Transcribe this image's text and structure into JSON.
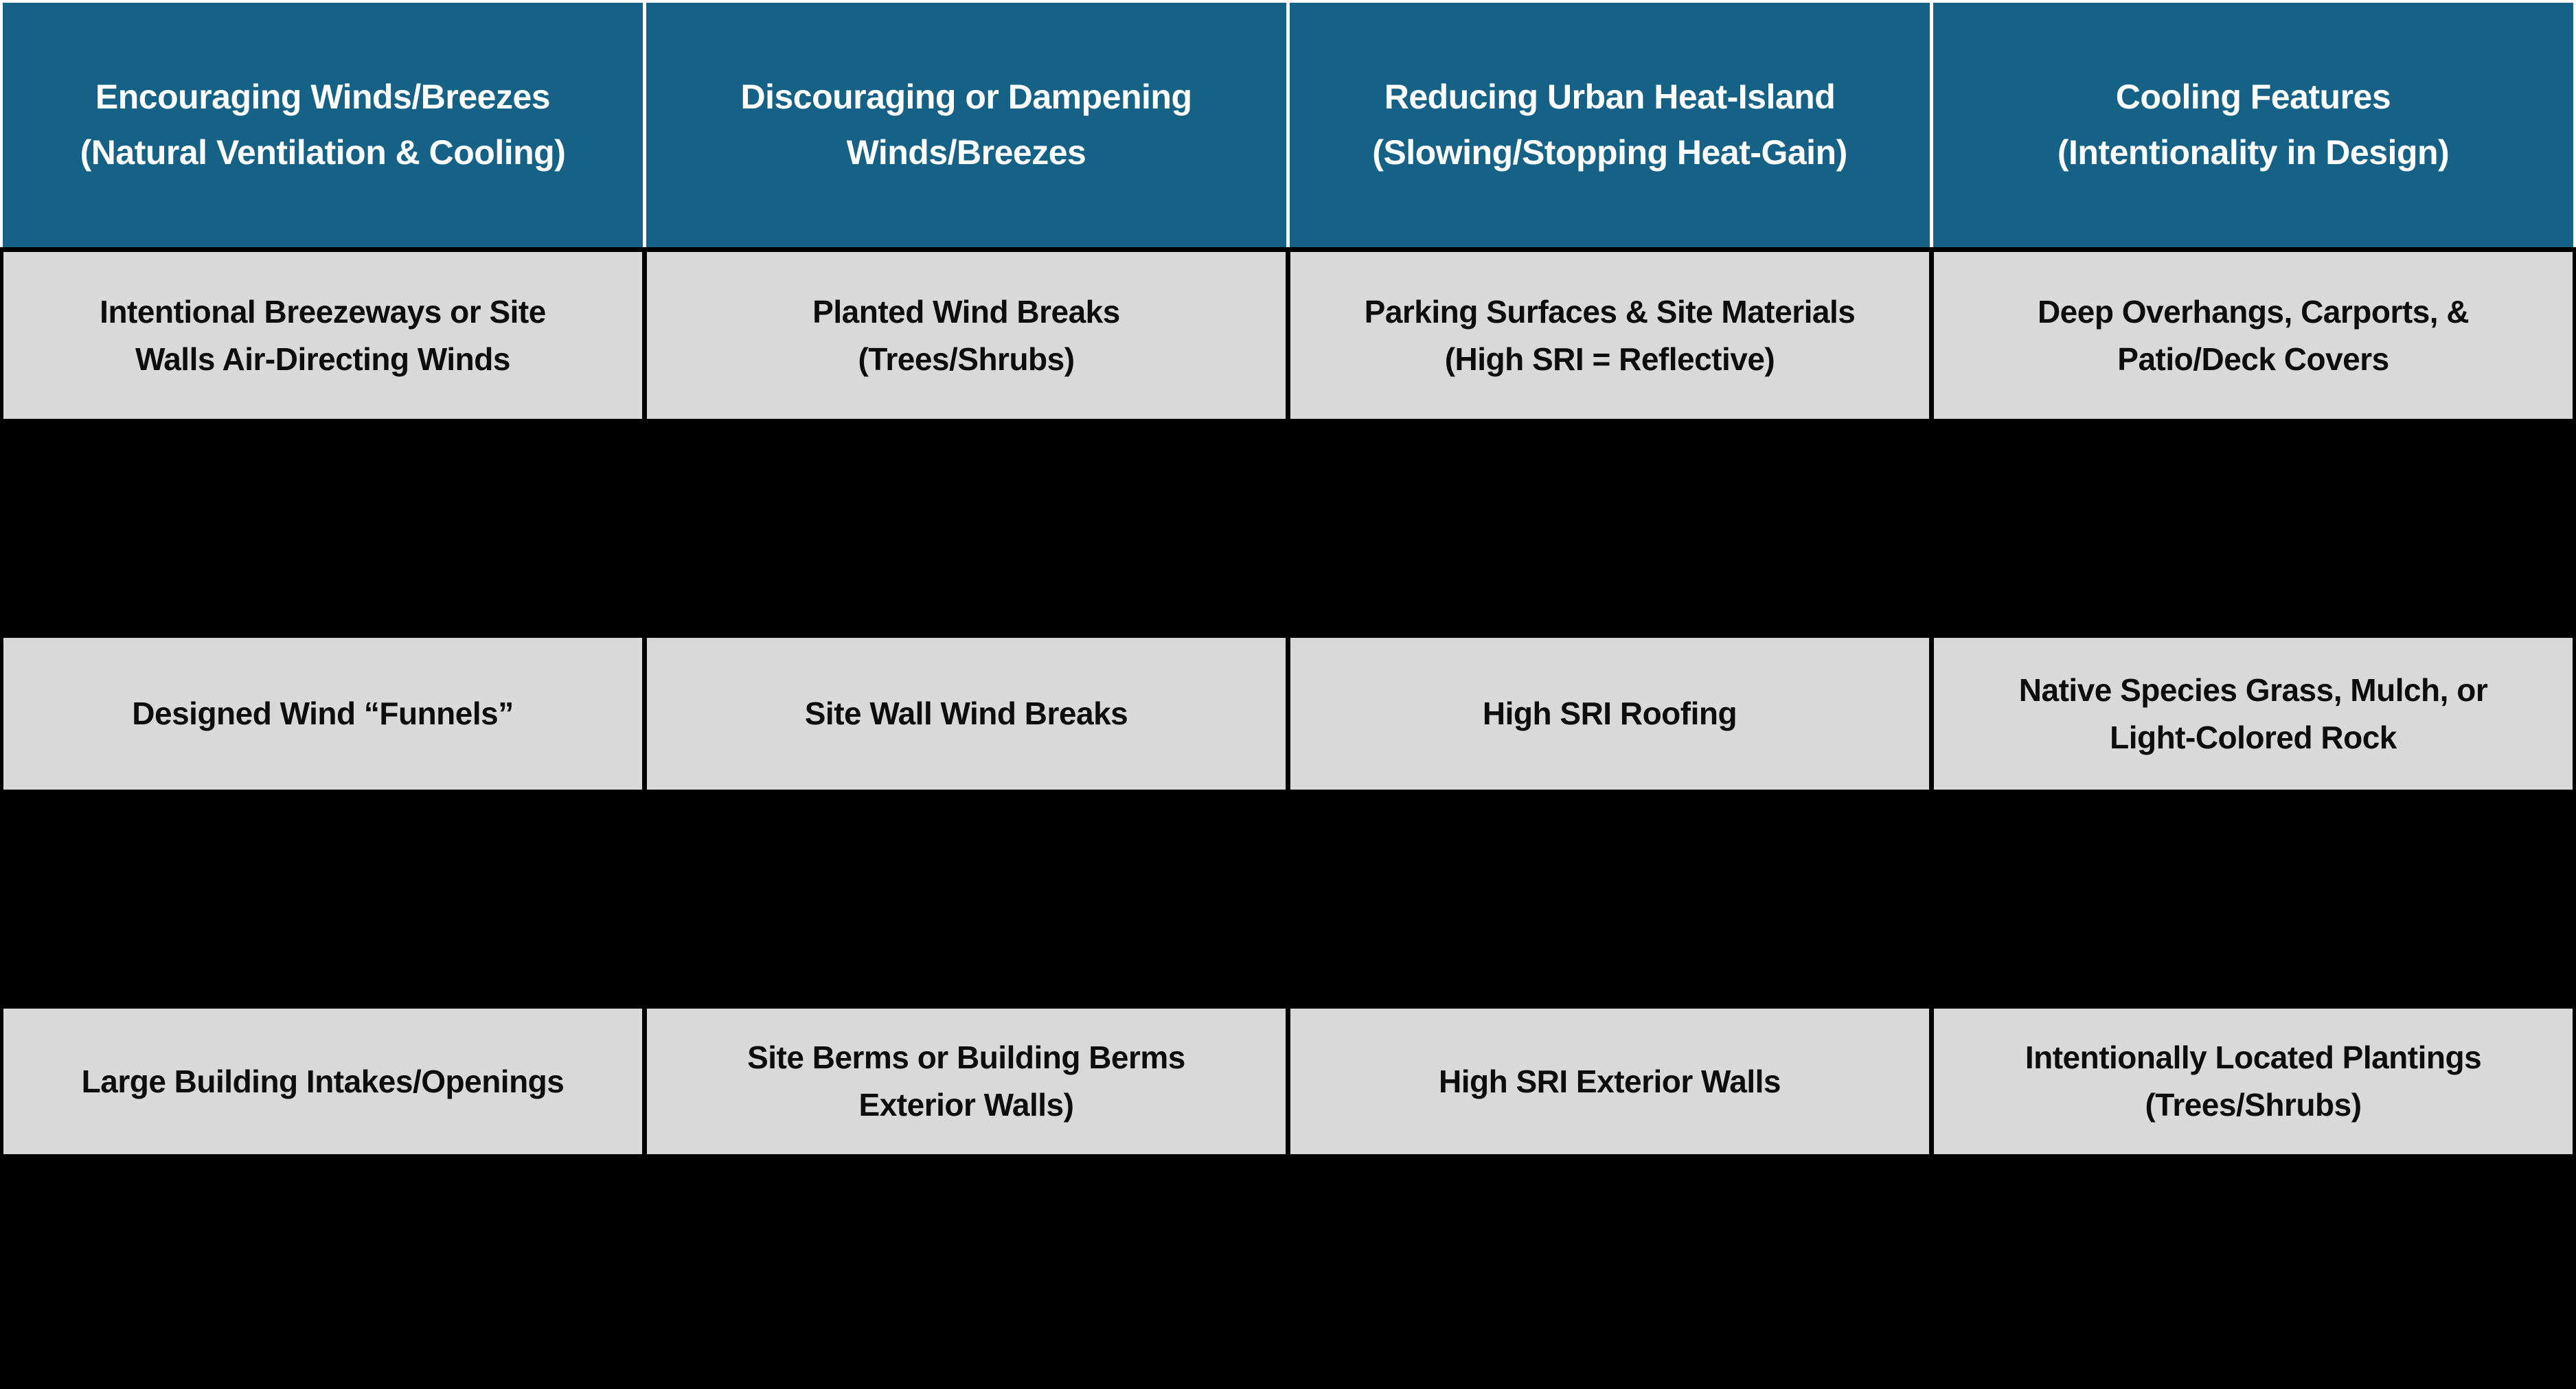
{
  "theme": {
    "header_bg": "#166286",
    "header_text": "#ffffff",
    "header_divider": "#ffffff",
    "cell_bg": "#d9d9d9",
    "cell_text": "#0d0d0d",
    "page_bg": "#000000"
  },
  "table": {
    "headers": [
      {
        "label": "Encouraging Winds/Breezes\n(Natural Ventilation & Cooling)"
      },
      {
        "label": "Discouraging or Dampening\nWinds/Breezes"
      },
      {
        "label": "Reducing Urban Heat-Island\n(Slowing/Stopping Heat-Gain)"
      },
      {
        "label": "Cooling Features\n(Intentionality in Design)"
      }
    ],
    "rows": [
      {
        "type": "text",
        "cells": [
          "Intentional Breezeways or Site\nWalls Air-Directing Winds",
          "Planted Wind Breaks\n(Trees/Shrubs)",
          "Parking Surfaces & Site Materials\n(High SRI = Reflective)",
          "Deep Overhangs, Carports, &\nPatio/Deck Covers"
        ]
      },
      {
        "type": "image-blank",
        "cells": [
          "",
          "",
          "",
          ""
        ]
      },
      {
        "type": "text",
        "cells": [
          "Designed Wind “Funnels”",
          "Site Wall Wind Breaks",
          "High SRI Roofing",
          "Native Species Grass, Mulch, or\nLight-Colored Rock"
        ]
      },
      {
        "type": "image-blank",
        "cells": [
          "",
          "",
          "",
          ""
        ]
      },
      {
        "type": "text",
        "cells": [
          "Large Building Intakes/Openings",
          "Site Berms or Building Berms\nExterior Walls)",
          "High SRI Exterior Walls",
          "Intentionally Located Plantings\n(Trees/Shrubs)"
        ]
      },
      {
        "type": "image-blank",
        "cells": [
          "",
          "",
          "",
          ""
        ]
      }
    ]
  }
}
